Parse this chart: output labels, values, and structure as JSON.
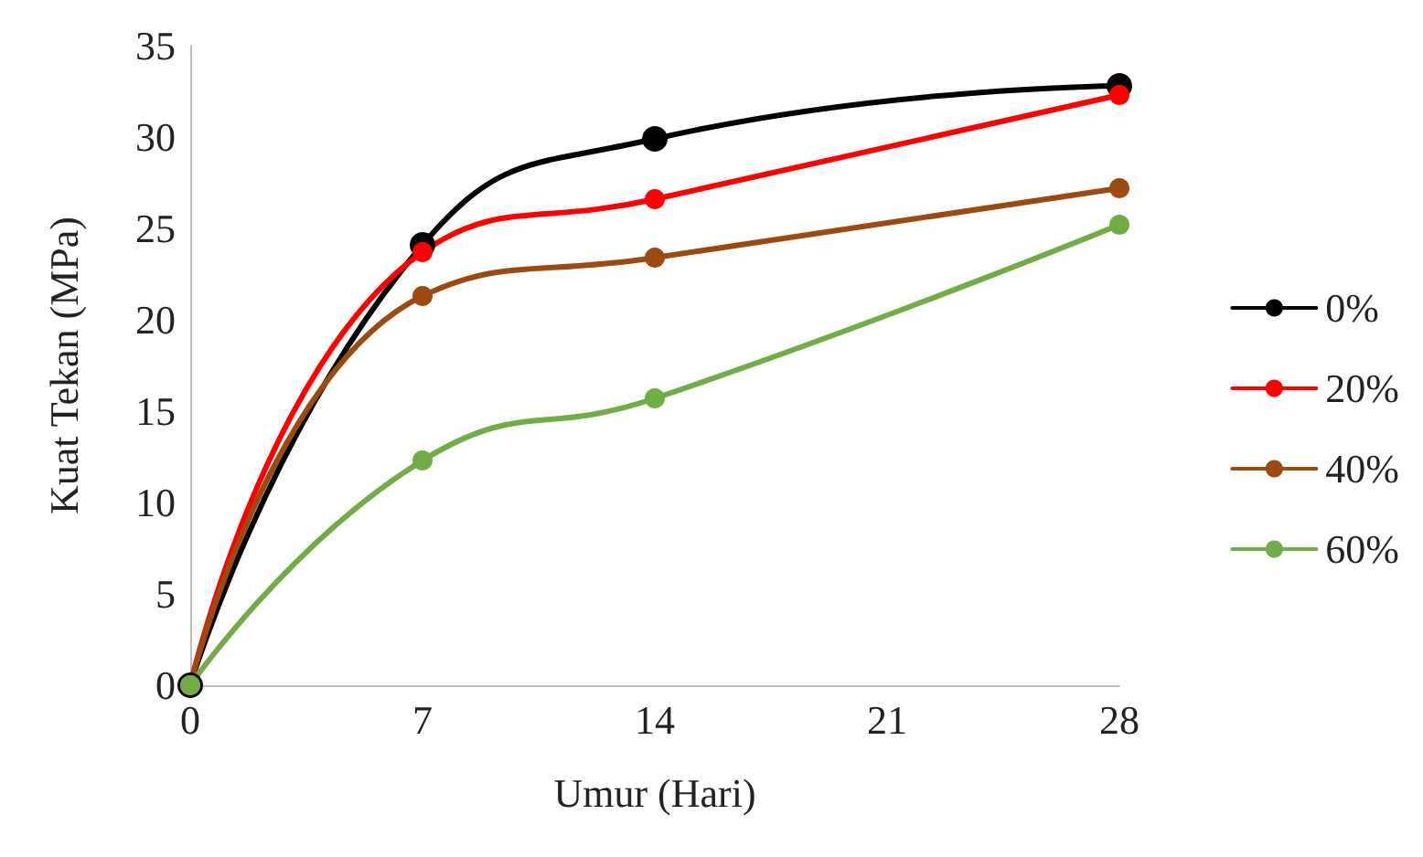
{
  "chart_data": {
    "type": "line",
    "xlabel": "Umur (Hari)",
    "ylabel": "Kuat Tekan (MPa)",
    "x": [
      0,
      7,
      14,
      28
    ],
    "series": [
      {
        "name": "0%",
        "color": "#000000",
        "values": [
          0,
          24.1,
          29.9,
          32.8
        ]
      },
      {
        "name": "20%",
        "color": "#ff0000",
        "values": [
          0,
          23.7,
          26.6,
          32.3
        ]
      },
      {
        "name": "40%",
        "color": "#9c4a0f",
        "values": [
          0,
          21.3,
          23.4,
          27.2
        ]
      },
      {
        "name": "60%",
        "color": "#70ad47",
        "values": [
          0,
          12.3,
          15.7,
          25.2
        ]
      }
    ],
    "xlim": [
      0,
      28
    ],
    "xticks": [
      0,
      7,
      14,
      21,
      28
    ],
    "ylim": [
      0,
      35
    ],
    "yticks": [
      0,
      5,
      10,
      15,
      20,
      25,
      30,
      35
    ],
    "grid": false,
    "legend": "right",
    "marker": "circle",
    "line_style": "solid"
  }
}
